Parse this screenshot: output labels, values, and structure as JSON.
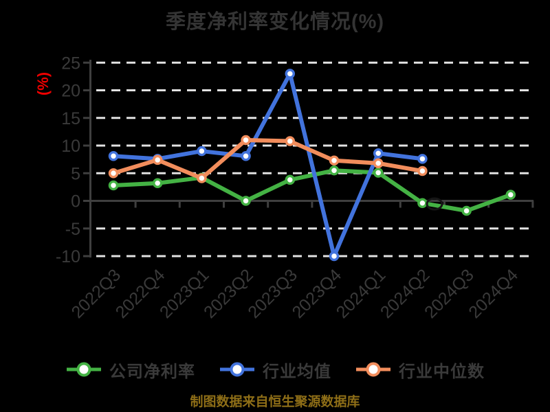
{
  "title": "季度净利率变化情况(%)",
  "y_axis_unit_label": "(%)",
  "footer_note": "制图数据来自恒生聚源数据库",
  "colors": {
    "background": "#000000",
    "title_text": "#343434",
    "axis_text": "#3a3a3a",
    "axis_line": "#3f3f3f",
    "gridline": "#e2e2e2",
    "y_unit_label_text": "#ee0000",
    "footer_text": "#8e6e17",
    "marker_fill": "#ffffff",
    "series_company": "#44b244",
    "series_industry_mean": "#4273dd",
    "series_industry_median": "#f28d5c"
  },
  "chart_data": {
    "type": "line",
    "title": "季度净利率变化情况(%)",
    "categories": [
      "2022Q3",
      "2022Q4",
      "2023Q1",
      "2023Q2",
      "2023Q3",
      "2023Q4",
      "2024Q1",
      "2024Q2",
      "2024Q3",
      "2024Q4"
    ],
    "series": [
      {
        "name": "公司净利率",
        "color": "#44b244",
        "values": [
          2.8,
          3.2,
          4.2,
          0.0,
          3.8,
          5.5,
          5.1,
          -0.4,
          -1.8,
          1.1
        ]
      },
      {
        "name": "行业均值",
        "color": "#4273dd",
        "values": [
          8.1,
          7.6,
          9.0,
          8.1,
          23.0,
          -10.0,
          8.6,
          7.6,
          null,
          null
        ]
      },
      {
        "name": "行业中位数",
        "color": "#f28d5c",
        "values": [
          5.0,
          7.4,
          4.1,
          11.0,
          10.8,
          7.3,
          6.8,
          5.4,
          null,
          null
        ]
      }
    ],
    "ylabel": "(%)",
    "xlabel": "",
    "ylim": [
      -10,
      25
    ],
    "yticks": [
      -10,
      -5,
      0,
      5,
      10,
      15,
      20,
      25
    ],
    "grid": "horizontal-dashed",
    "legend_position": "bottom",
    "source_note": "制图数据来自恒生聚源数据库"
  }
}
